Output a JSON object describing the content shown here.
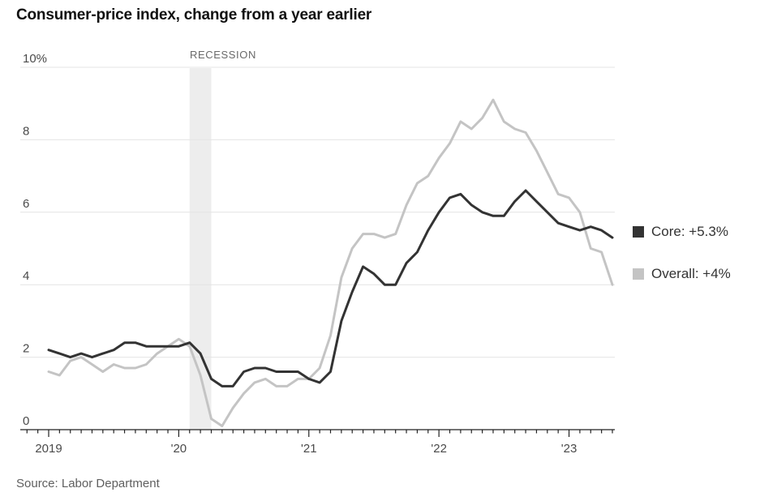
{
  "title": "Consumer-price index, change from a year earlier",
  "source": "Source: Labor Department",
  "legend": [
    {
      "id": "core",
      "label": "Core: +5.3%",
      "color": "#333333"
    },
    {
      "id": "overall",
      "label": "Overall: +4%",
      "color": "#c4c4c4"
    }
  ],
  "chart_data": {
    "type": "line",
    "title": "Consumer-price index, change from a year earlier",
    "x_unit": "month",
    "x_start": "2019-01",
    "x_end": "2023-05",
    "x_tick_labels": [
      "2019",
      "'20",
      "'21",
      "'22",
      "'23"
    ],
    "x_year_tick_month_indices": [
      0,
      12,
      24,
      36,
      48
    ],
    "y_ticks": [
      0,
      2,
      4,
      6,
      8
    ],
    "y_top_tick_label": "10%",
    "ylim": [
      0,
      10
    ],
    "grid": "horizontal",
    "legend_position": "right",
    "recession_band": {
      "label": "RECESSION",
      "start": "2020-02",
      "end": "2020-04",
      "start_month_index": 13,
      "end_month_index": 15,
      "color": "#ededed"
    },
    "series": [
      {
        "name": "Overall",
        "color": "#c4c4c4",
        "last_value_label": "+4%",
        "values": [
          1.6,
          1.5,
          1.9,
          2.0,
          1.8,
          1.6,
          1.8,
          1.7,
          1.7,
          1.8,
          2.1,
          2.3,
          2.5,
          2.3,
          1.5,
          0.3,
          0.1,
          0.6,
          1.0,
          1.3,
          1.4,
          1.2,
          1.2,
          1.4,
          1.4,
          1.7,
          2.6,
          4.2,
          5.0,
          5.4,
          5.4,
          5.3,
          5.4,
          6.2,
          6.8,
          7.0,
          7.5,
          7.9,
          8.5,
          8.3,
          8.6,
          9.1,
          8.5,
          8.3,
          8.2,
          7.7,
          7.1,
          6.5,
          6.4,
          6.0,
          5.0,
          4.9,
          4.0
        ]
      },
      {
        "name": "Core",
        "color": "#333333",
        "last_value_label": "+5.3%",
        "values": [
          2.2,
          2.1,
          2.0,
          2.1,
          2.0,
          2.1,
          2.2,
          2.4,
          2.4,
          2.3,
          2.3,
          2.3,
          2.3,
          2.4,
          2.1,
          1.4,
          1.2,
          1.2,
          1.6,
          1.7,
          1.7,
          1.6,
          1.6,
          1.6,
          1.4,
          1.3,
          1.6,
          3.0,
          3.8,
          4.5,
          4.3,
          4.0,
          4.0,
          4.6,
          4.9,
          5.5,
          6.0,
          6.4,
          6.5,
          6.2,
          6.0,
          5.9,
          5.9,
          6.3,
          6.6,
          6.3,
          6.0,
          5.7,
          5.6,
          5.5,
          5.6,
          5.5,
          5.3
        ]
      }
    ],
    "style": {
      "gridline_color": "#e4e4e4",
      "axis_color": "#222222",
      "tick_label_color": "#4a4a4a",
      "line_width": 3
    }
  }
}
